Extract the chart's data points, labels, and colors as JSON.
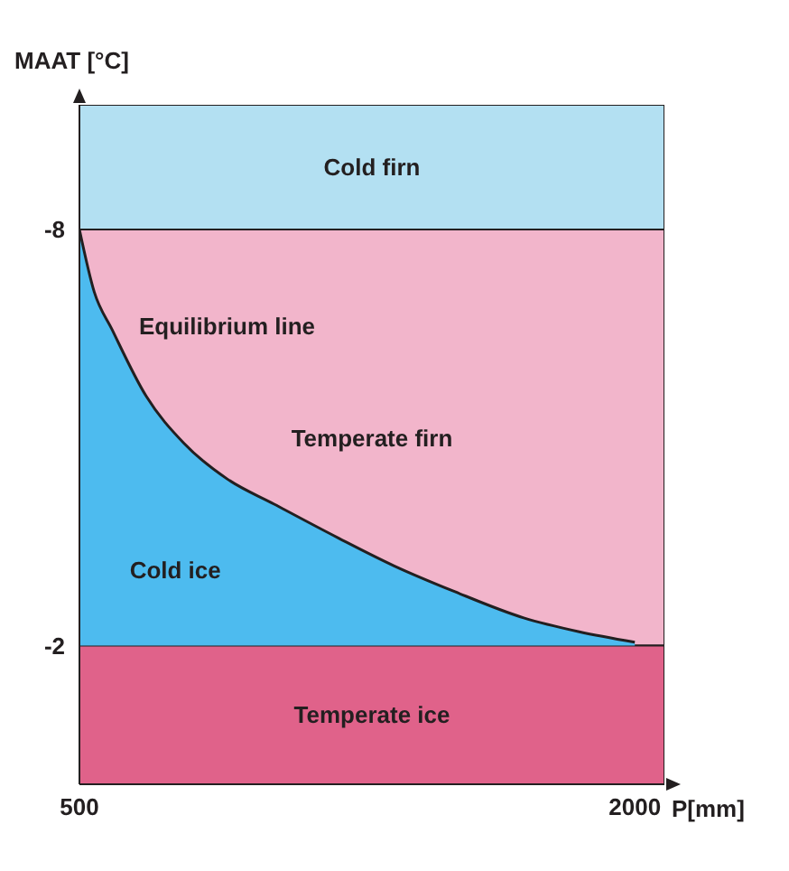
{
  "chart_data": {
    "type": "area",
    "xlabel": "P[mm]",
    "ylabel": "MAAT [°C]",
    "xlim": [
      500,
      2080
    ],
    "ylim": [
      0,
      -9.8
    ],
    "xticks": [
      500,
      2000
    ],
    "yticks": [
      -8,
      -2
    ],
    "x": [
      500,
      540,
      588,
      680,
      782,
      900,
      1026,
      1200,
      1350,
      1513,
      1700,
      1850,
      2000
    ],
    "series": [
      {
        "name": "Cold ice",
        "color": "#4dbbef",
        "values": [
          -8,
          -7.1,
          -6.56,
          -5.6,
          -4.92,
          -4.4,
          -4.04,
          -3.55,
          -3.15,
          -2.78,
          -2.4,
          -2.2,
          -2.05
        ]
      }
    ],
    "annotations": [
      "Equilibrium line"
    ],
    "bands": [
      {
        "axis": "y",
        "from": -9.8,
        "to": -8,
        "label": "Cold firn",
        "color": "#b3e0f2"
      },
      {
        "axis": "y",
        "from": -8,
        "to": -2,
        "label": "Temperate firn",
        "color": "#f2b5cb"
      },
      {
        "axis": "y",
        "from": -2,
        "to": 0,
        "label": "Temperate ice",
        "color": "#e0628a"
      }
    ]
  }
}
